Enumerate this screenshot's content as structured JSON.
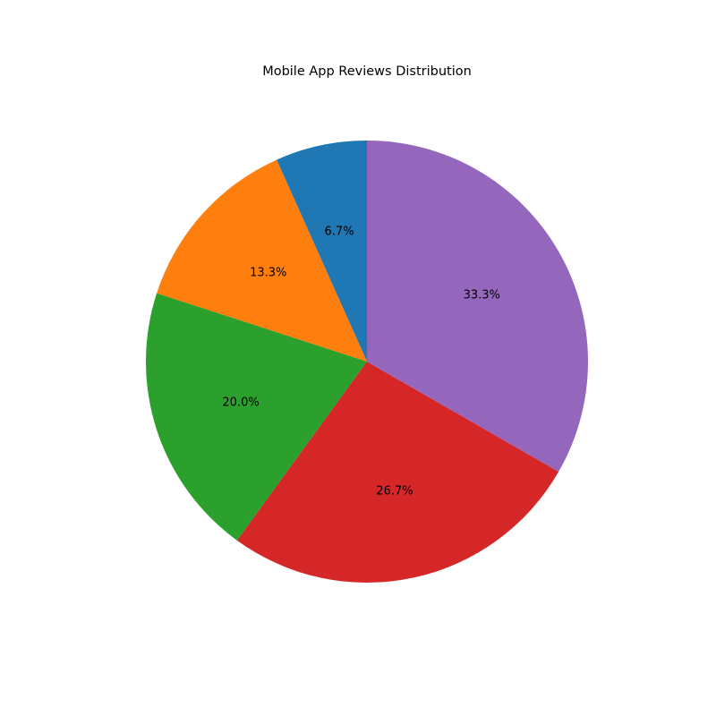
{
  "chart_data": {
    "type": "pie",
    "title": "Mobile App Reviews Distribution",
    "slices": [
      {
        "value": 6.7,
        "label": "6.7%",
        "color": "#1f77b4"
      },
      {
        "value": 13.3,
        "label": "13.3%",
        "color": "#ff7f0e"
      },
      {
        "value": 20.0,
        "label": "20.0%",
        "color": "#2ca02c"
      },
      {
        "value": 26.7,
        "label": "26.7%",
        "color": "#d62728"
      },
      {
        "value": 33.3,
        "label": "33.3%",
        "color": "#9467bd"
      }
    ],
    "start_angle_deg": 90,
    "direction": "counterclockwise",
    "legend": "none"
  }
}
